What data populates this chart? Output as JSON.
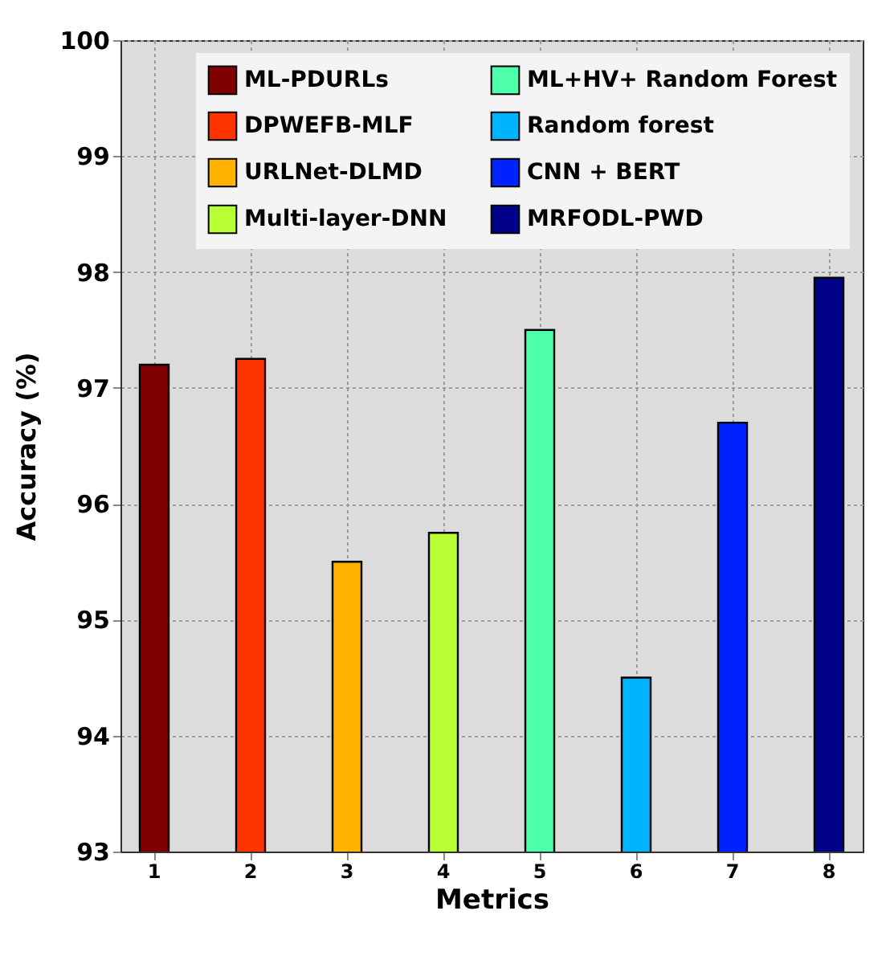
{
  "chart_data": {
    "type": "bar",
    "xlabel": "Metrics",
    "ylabel": "Accuracy (%)",
    "categories": [
      "1",
      "2",
      "3",
      "4",
      "5",
      "6",
      "7",
      "8"
    ],
    "series": [
      {
        "name": "ML-PDURLs",
        "color": "#800000",
        "values": [
          97.2,
          null,
          null,
          null,
          null,
          null,
          null,
          null
        ]
      },
      {
        "name": "DPWEFB-MLF",
        "color": "#ff3300",
        "values": [
          null,
          97.25,
          null,
          null,
          null,
          null,
          null,
          null
        ]
      },
      {
        "name": "URLNet-DLMD",
        "color": "#ffb300",
        "values": [
          null,
          null,
          95.5,
          null,
          null,
          null,
          null,
          null
        ]
      },
      {
        "name": "Multi-layer-DNN",
        "color": "#b8ff33",
        "values": [
          null,
          null,
          null,
          95.75,
          null,
          null,
          null,
          null
        ]
      },
      {
        "name": "ML+HV+ Random Forest",
        "color": "#4dffaa",
        "values": [
          null,
          null,
          null,
          null,
          97.5,
          null,
          null,
          null
        ]
      },
      {
        "name": "Random forest",
        "color": "#00b3ff",
        "values": [
          null,
          null,
          null,
          null,
          null,
          94.5,
          null,
          null
        ]
      },
      {
        "name": "CNN + BERT",
        "color": "#0022ff",
        "values": [
          null,
          null,
          null,
          null,
          null,
          null,
          96.7,
          null
        ]
      },
      {
        "name": "MRFODL-PWD",
        "color": "#000088",
        "values": [
          null,
          null,
          null,
          null,
          null,
          null,
          null,
          97.95
        ]
      }
    ],
    "ylim": [
      93,
      100
    ],
    "yticks": [
      93,
      94,
      95,
      96,
      97,
      98,
      99,
      100
    ],
    "grid": true,
    "legend": "top right"
  }
}
